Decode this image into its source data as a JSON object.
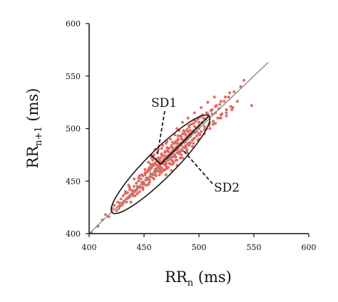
{
  "chart_data": {
    "type": "scatter",
    "xlabel": {
      "base": "RR",
      "sub": "n",
      "unit": " (ms)"
    },
    "ylabel": {
      "base": "RR",
      "sub": "n+1",
      "unit": " (ms)"
    },
    "xlim": [
      400,
      600
    ],
    "ylim": [
      400,
      600
    ],
    "x_ticks": [
      "400",
      "450",
      "500",
      "550",
      "600"
    ],
    "y_ticks": [
      "400",
      "450",
      "500",
      "550",
      "600"
    ],
    "grid": false,
    "identity_line": {
      "from": [
        400,
        400
      ],
      "to": [
        563,
        563
      ]
    },
    "ellipse": {
      "center": [
        465,
        466
      ],
      "sd1": 8,
      "sd2": 44,
      "angle_deg": 45
    },
    "annotations": [
      {
        "text": "SD1",
        "points_to": [
          462,
          474
        ]
      },
      {
        "text": "SD2",
        "points_to": [
          485,
          480
        ]
      }
    ],
    "point_color": "#e06b60",
    "series": [
      {
        "points": [
          [
            402,
            401
          ],
          [
            408,
            407
          ],
          [
            412,
            413
          ],
          [
            415,
            418
          ],
          [
            418,
            416
          ],
          [
            421,
            424
          ],
          [
            423,
            427
          ],
          [
            425,
            422
          ],
          [
            426,
            430
          ],
          [
            428,
            429
          ],
          [
            429,
            433
          ],
          [
            430,
            427
          ],
          [
            431,
            436
          ],
          [
            432,
            431
          ],
          [
            433,
            438
          ],
          [
            434,
            433
          ],
          [
            435,
            439
          ],
          [
            436,
            434
          ],
          [
            437,
            442
          ],
          [
            438,
            437
          ],
          [
            439,
            441
          ],
          [
            440,
            436
          ],
          [
            441,
            445
          ],
          [
            442,
            440
          ],
          [
            443,
            448
          ],
          [
            444,
            443
          ],
          [
            445,
            450
          ],
          [
            446,
            444
          ],
          [
            447,
            452
          ],
          [
            448,
            447
          ],
          [
            449,
            455
          ],
          [
            450,
            448
          ],
          [
            451,
            456
          ],
          [
            452,
            451
          ],
          [
            453,
            459
          ],
          [
            454,
            452
          ],
          [
            455,
            460
          ],
          [
            456,
            454
          ],
          [
            457,
            463
          ],
          [
            458,
            456
          ],
          [
            459,
            465
          ],
          [
            460,
            458
          ],
          [
            461,
            468
          ],
          [
            462,
            460
          ],
          [
            463,
            469
          ],
          [
            464,
            462
          ],
          [
            465,
            472
          ],
          [
            466,
            463
          ],
          [
            467,
            474
          ],
          [
            468,
            466
          ],
          [
            469,
            477
          ],
          [
            470,
            468
          ],
          [
            471,
            479
          ],
          [
            472,
            470
          ],
          [
            473,
            481
          ],
          [
            474,
            472
          ],
          [
            475,
            484
          ],
          [
            476,
            473
          ],
          [
            477,
            486
          ],
          [
            478,
            475
          ],
          [
            479,
            488
          ],
          [
            480,
            477
          ],
          [
            481,
            490
          ],
          [
            482,
            478
          ],
          [
            483,
            493
          ],
          [
            484,
            480
          ],
          [
            485,
            495
          ],
          [
            486,
            482
          ],
          [
            487,
            497
          ],
          [
            488,
            483
          ],
          [
            489,
            499
          ],
          [
            490,
            486
          ],
          [
            491,
            501
          ],
          [
            492,
            487
          ],
          [
            493,
            504
          ],
          [
            494,
            489
          ],
          [
            495,
            505
          ],
          [
            496,
            491
          ],
          [
            497,
            507
          ],
          [
            498,
            493
          ],
          [
            499,
            509
          ],
          [
            500,
            495
          ],
          [
            501,
            511
          ],
          [
            502,
            497
          ],
          [
            503,
            513
          ],
          [
            505,
            499
          ],
          [
            507,
            515
          ],
          [
            509,
            503
          ],
          [
            511,
            517
          ],
          [
            513,
            507
          ],
          [
            515,
            521
          ],
          [
            517,
            510
          ],
          [
            519,
            523
          ],
          [
            521,
            514
          ],
          [
            523,
            526
          ],
          [
            525,
            518
          ],
          [
            527,
            530
          ],
          [
            529,
            521
          ],
          [
            532,
            535
          ],
          [
            535,
            526
          ],
          [
            538,
            540
          ],
          [
            541,
            546
          ],
          [
            548,
            522
          ],
          [
            436,
            446
          ],
          [
            441,
            452
          ],
          [
            446,
            455
          ],
          [
            451,
            461
          ],
          [
            456,
            466
          ],
          [
            461,
            471
          ],
          [
            466,
            476
          ],
          [
            471,
            482
          ],
          [
            476,
            487
          ],
          [
            481,
            493
          ],
          [
            486,
            498
          ],
          [
            491,
            503
          ],
          [
            496,
            508
          ],
          [
            444,
            438
          ],
          [
            449,
            442
          ],
          [
            454,
            447
          ],
          [
            459,
            452
          ],
          [
            464,
            456
          ],
          [
            469,
            461
          ],
          [
            474,
            466
          ],
          [
            479,
            470
          ],
          [
            484,
            475
          ],
          [
            489,
            478
          ],
          [
            494,
            483
          ],
          [
            499,
            489
          ],
          [
            458,
            470
          ],
          [
            462,
            477
          ],
          [
            466,
            481
          ],
          [
            470,
            486
          ],
          [
            474,
            490
          ],
          [
            478,
            494
          ],
          [
            482,
            498
          ],
          [
            468,
            460
          ],
          [
            472,
            463
          ],
          [
            476,
            466
          ],
          [
            480,
            470
          ],
          [
            485,
            472
          ],
          [
            490,
            476
          ],
          [
            462,
            465
          ],
          [
            465,
            468
          ],
          [
            468,
            471
          ],
          [
            471,
            474
          ],
          [
            474,
            477
          ],
          [
            477,
            480
          ],
          [
            480,
            483
          ],
          [
            483,
            486
          ],
          [
            486,
            489
          ],
          [
            489,
            492
          ],
          [
            492,
            495
          ],
          [
            495,
            498
          ],
          [
            460,
            461
          ],
          [
            463,
            463
          ],
          [
            466,
            467
          ],
          [
            469,
            470
          ],
          [
            472,
            472
          ],
          [
            475,
            476
          ],
          [
            478,
            479
          ],
          [
            481,
            481
          ],
          [
            484,
            485
          ],
          [
            487,
            487
          ],
          [
            490,
            490
          ],
          [
            493,
            494
          ],
          [
            455,
            463
          ],
          [
            458,
            466
          ],
          [
            461,
            462
          ],
          [
            464,
            466
          ],
          [
            467,
            469
          ],
          [
            470,
            473
          ],
          [
            473,
            475
          ],
          [
            476,
            479
          ],
          [
            479,
            482
          ],
          [
            482,
            485
          ],
          [
            485,
            487
          ],
          [
            488,
            491
          ],
          [
            491,
            494
          ],
          [
            494,
            497
          ],
          [
            497,
            501
          ],
          [
            500,
            503
          ],
          [
            503,
            506
          ],
          [
            506,
            509
          ],
          [
            509,
            512
          ],
          [
            512,
            514
          ],
          [
            515,
            515
          ],
          [
            518,
            519
          ],
          [
            520,
            513
          ],
          [
            510,
            505
          ],
          [
            505,
            502
          ],
          [
            498,
            497
          ],
          [
            495,
            490
          ],
          [
            492,
            486
          ],
          [
            488,
            484
          ],
          [
            483,
            478
          ],
          [
            478,
            473
          ],
          [
            475,
            470
          ],
          [
            470,
            466
          ],
          [
            465,
            460
          ],
          [
            460,
            456
          ],
          [
            455,
            451
          ],
          [
            450,
            447
          ],
          [
            447,
            444
          ],
          [
            443,
            441
          ],
          [
            440,
            438
          ],
          [
            437,
            435
          ],
          [
            434,
            430
          ],
          [
            431,
            429
          ],
          [
            428,
            426
          ],
          [
            427,
            424
          ],
          [
            459,
            475
          ],
          [
            463,
            480
          ],
          [
            467,
            484
          ],
          [
            471,
            488
          ],
          [
            454,
            468
          ],
          [
            457,
            472
          ],
          [
            461,
            459
          ],
          [
            466,
            458
          ],
          [
            471,
            462
          ],
          [
            477,
            468
          ],
          [
            483,
            472
          ],
          [
            489,
            480
          ],
          [
            495,
            486
          ],
          [
            501,
            494
          ],
          [
            507,
            500
          ],
          [
            513,
            504
          ],
          [
            519,
            510
          ],
          [
            525,
            515
          ],
          [
            531,
            520
          ],
          [
            452,
            458
          ],
          [
            456,
            462
          ],
          [
            460,
            466
          ],
          [
            464,
            470
          ],
          [
            468,
            474
          ],
          [
            472,
            478
          ],
          [
            476,
            482
          ],
          [
            480,
            486
          ],
          [
            484,
            490
          ],
          [
            488,
            494
          ],
          [
            492,
            498
          ],
          [
            496,
            502
          ],
          [
            500,
            506
          ],
          [
            504,
            510
          ],
          [
            508,
            514
          ],
          [
            512,
            518
          ],
          [
            516,
            522
          ],
          [
            520,
            526
          ],
          [
            524,
            530
          ],
          [
            528,
            534
          ],
          [
            440,
            441
          ],
          [
            444,
            445
          ],
          [
            448,
            449
          ],
          [
            452,
            453
          ],
          [
            456,
            457
          ],
          [
            460,
            460
          ],
          [
            464,
            464
          ],
          [
            468,
            468
          ],
          [
            472,
            472
          ],
          [
            476,
            476
          ],
          [
            480,
            480
          ],
          [
            484,
            484
          ],
          [
            488,
            488
          ],
          [
            492,
            492
          ],
          [
            496,
            496
          ],
          [
            500,
            500
          ],
          [
            445,
            453
          ],
          [
            448,
            456
          ],
          [
            451,
            458
          ],
          [
            454,
            461
          ],
          [
            457,
            464
          ],
          [
            460,
            467
          ],
          [
            463,
            472
          ],
          [
            466,
            475
          ],
          [
            469,
            478
          ],
          [
            472,
            481
          ],
          [
            475,
            483
          ],
          [
            478,
            486
          ],
          [
            481,
            489
          ],
          [
            484,
            492
          ],
          [
            487,
            495
          ],
          [
            490,
            497
          ],
          [
            446,
            440
          ],
          [
            449,
            444
          ],
          [
            452,
            446
          ],
          [
            455,
            449
          ],
          [
            458,
            453
          ],
          [
            461,
            455
          ],
          [
            464,
            459
          ],
          [
            467,
            461
          ],
          [
            470,
            464
          ],
          [
            473,
            467
          ],
          [
            476,
            469
          ],
          [
            479,
            473
          ],
          [
            482,
            476
          ],
          [
            485,
            479
          ],
          [
            488,
            482
          ],
          [
            491,
            484
          ],
          [
            438,
            430
          ],
          [
            442,
            436
          ],
          [
            433,
            440
          ],
          [
            437,
            444
          ],
          [
            480,
            500
          ],
          [
            485,
            506
          ],
          [
            490,
            510
          ],
          [
            496,
            515
          ],
          [
            502,
            520
          ],
          [
            508,
            525
          ],
          [
            514,
            530
          ],
          [
            500,
            490
          ],
          [
            505,
            495
          ],
          [
            510,
            500
          ],
          [
            515,
            505
          ],
          [
            520,
            510
          ],
          [
            525,
            512
          ],
          [
            530,
            518
          ],
          [
            460,
            480
          ],
          [
            456,
            474
          ],
          [
            470,
            456
          ],
          [
            475,
            460
          ],
          [
            480,
            465
          ]
        ]
      }
    ]
  }
}
